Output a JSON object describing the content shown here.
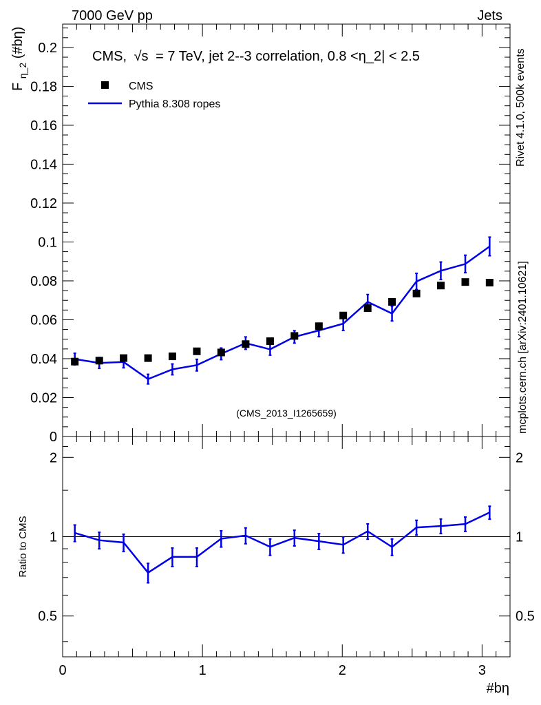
{
  "header": {
    "left": "7000 GeV pp",
    "right": "Jets"
  },
  "side_labels": {
    "rivet": "Rivet 4.1.0,  500k events",
    "mcplots": "mcplots.cern.ch [arXiv:2401.10621]"
  },
  "colors": {
    "mc": "#0000e6",
    "data": "#000000",
    "side_text": "#8c8c8c",
    "analysis_text": "#9a9a9a"
  },
  "chart_data": [
    {
      "type": "line",
      "title": "CMS, √s = 7 TeV, jet 2--3 correlation, 0.8 <η_2| < 2.5",
      "sqrt_s_label": "√s",
      "title_before": "CMS,",
      "title_after": "= 7 TeV, jet 2--3 correlation, 0.8 <η_2| < 2.5",
      "ylabel": "F_η_2(#bη)",
      "ylabel_main": "F",
      "ylabel_sub": "η_2",
      "ylabel_tail": "(#bη)",
      "analysis_id": "(CMS_2013_I1265659)",
      "xlim": [
        0,
        3.2
      ],
      "ylim": [
        0,
        0.212
      ],
      "yticks": [
        0,
        0.02,
        0.04,
        0.06,
        0.08,
        0.1,
        0.12,
        0.14,
        0.16,
        0.18,
        0.2
      ],
      "ytick_labels": [
        "0",
        "0.02",
        "0.04",
        "0.06",
        "0.08",
        "0.1",
        "0.12",
        "0.14",
        "0.16",
        "0.18",
        "0.2"
      ],
      "x": [
        0.087,
        0.262,
        0.436,
        0.611,
        0.785,
        0.96,
        1.134,
        1.309,
        1.484,
        1.658,
        1.833,
        2.007,
        2.182,
        2.356,
        2.531,
        2.705,
        2.88,
        3.054
      ],
      "legend": [
        {
          "name": "CMS",
          "marker": "square"
        },
        {
          "name": "Pythia 8.308 ropes",
          "marker": "line"
        }
      ],
      "series": [
        {
          "name": "CMS",
          "values": [
            0.0385,
            0.039,
            0.0403,
            0.0403,
            0.0412,
            0.0438,
            0.0432,
            0.0475,
            0.049,
            0.0517,
            0.0567,
            0.0622,
            0.066,
            0.0692,
            0.0735,
            0.0776,
            0.0794,
            0.0791
          ]
        },
        {
          "name": "Pythia 8.308 ropes",
          "values": [
            0.0398,
            0.0378,
            0.0383,
            0.0295,
            0.0345,
            0.0367,
            0.0425,
            0.048,
            0.0448,
            0.0512,
            0.0545,
            0.058,
            0.0692,
            0.0632,
            0.0797,
            0.0852,
            0.0887,
            0.0977
          ],
          "errors": [
            0.003,
            0.0028,
            0.003,
            0.0025,
            0.0028,
            0.003,
            0.003,
            0.0032,
            0.003,
            0.0032,
            0.0032,
            0.0035,
            0.0038,
            0.0038,
            0.0042,
            0.0045,
            0.0045,
            0.0048
          ]
        }
      ]
    },
    {
      "type": "line",
      "title": "",
      "xlabel": "#bη",
      "ylabel": "Ratio to CMS",
      "xlim": [
        0,
        3.2
      ],
      "ylim": [
        0.35,
        2.4
      ],
      "yscale": "log",
      "xticks": [
        0,
        1,
        2,
        3
      ],
      "xtick_labels": [
        "0",
        "1",
        "2",
        "3"
      ],
      "yticks": [
        0.5,
        1,
        2
      ],
      "ytick_labels": [
        "0.5",
        "1",
        "2"
      ],
      "reference_line": 1,
      "x": [
        0.087,
        0.262,
        0.436,
        0.611,
        0.785,
        0.96,
        1.134,
        1.309,
        1.484,
        1.658,
        1.833,
        2.007,
        2.182,
        2.356,
        2.531,
        2.705,
        2.88,
        3.054
      ],
      "series": [
        {
          "name": "Pythia 8.308 ropes / CMS",
          "values": [
            1.033,
            0.969,
            0.95,
            0.73,
            0.838,
            0.838,
            0.983,
            1.01,
            0.915,
            0.99,
            0.961,
            0.932,
            1.048,
            0.914,
            1.084,
            1.097,
            1.117,
            1.235
          ],
          "errors": [
            0.075,
            0.07,
            0.072,
            0.062,
            0.068,
            0.068,
            0.07,
            0.07,
            0.066,
            0.068,
            0.066,
            0.066,
            0.07,
            0.066,
            0.07,
            0.07,
            0.07,
            0.07
          ]
        }
      ]
    }
  ]
}
